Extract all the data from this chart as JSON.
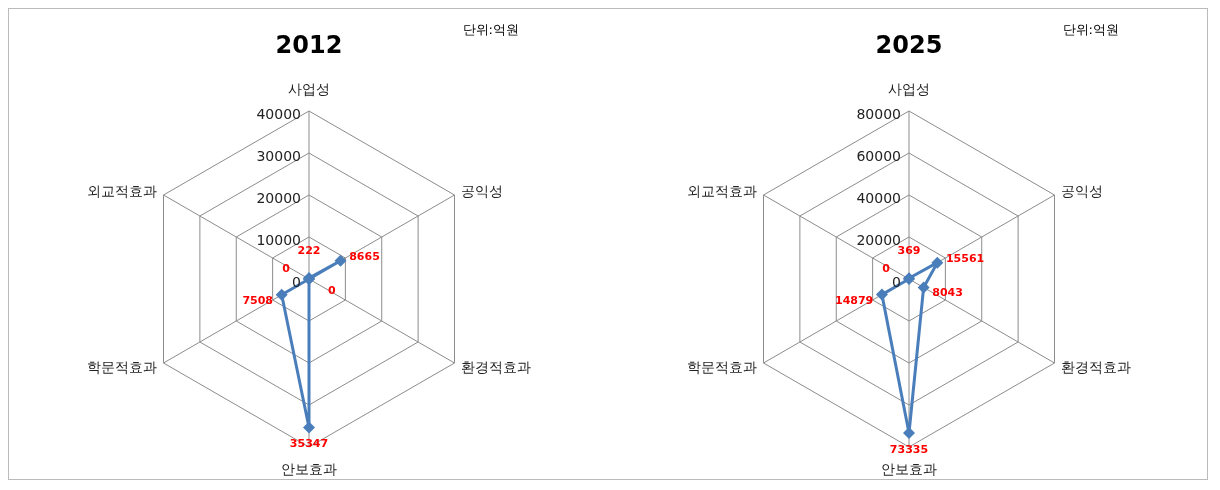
{
  "chart_data": [
    {
      "type": "radar",
      "title": "2012",
      "annotations": [
        "단위:억원"
      ],
      "categories": [
        "사업성",
        "공익성",
        "환경적효과",
        "안보효과",
        "학문적효과",
        "외교적효과"
      ],
      "series": [
        {
          "color": "#4a7ebb",
          "values": [
            222,
            8665,
            0,
            35347,
            7508,
            0
          ]
        }
      ],
      "ylim": [
        0,
        40000
      ],
      "yticks": [
        0,
        10000,
        20000,
        30000,
        40000
      ],
      "grid": true,
      "marker": "diamond",
      "data_labels": true
    },
    {
      "type": "radar",
      "title": "2025",
      "annotations": [
        "단위:억원"
      ],
      "categories": [
        "사업성",
        "공익성",
        "환경적효과",
        "안보효과",
        "학문적효과",
        "외교적효과"
      ],
      "series": [
        {
          "color": "#4a7ebb",
          "values": [
            369,
            15561,
            8043,
            73335,
            14879,
            0
          ]
        }
      ],
      "ylim": [
        0,
        80000
      ],
      "yticks": [
        0,
        20000,
        40000,
        60000,
        80000
      ],
      "grid": true,
      "marker": "diamond",
      "data_labels": true
    }
  ]
}
